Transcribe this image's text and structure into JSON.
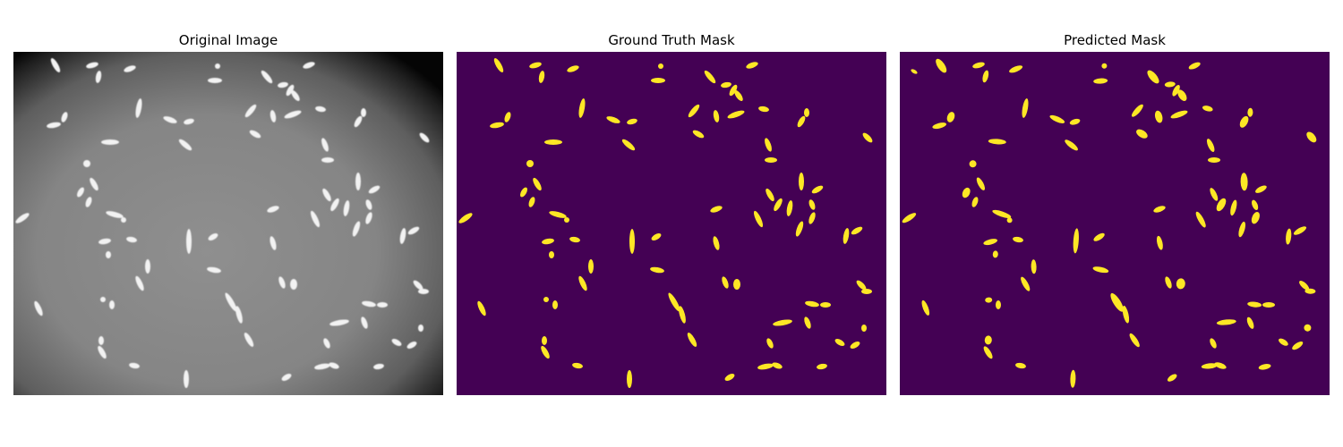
{
  "figure": {
    "panels": [
      {
        "id": "original",
        "title": "Original Image"
      },
      {
        "id": "ground-truth",
        "title": "Ground Truth Mask"
      },
      {
        "id": "predicted",
        "title": "Predicted Mask"
      }
    ]
  },
  "colors": {
    "background": "#ffffff",
    "mask_background": "#440154",
    "mask_foreground": "#fde725",
    "microscopy_center": "#8a8a8a",
    "microscopy_edge": "#000000",
    "cell": "#f2f2f2"
  }
}
